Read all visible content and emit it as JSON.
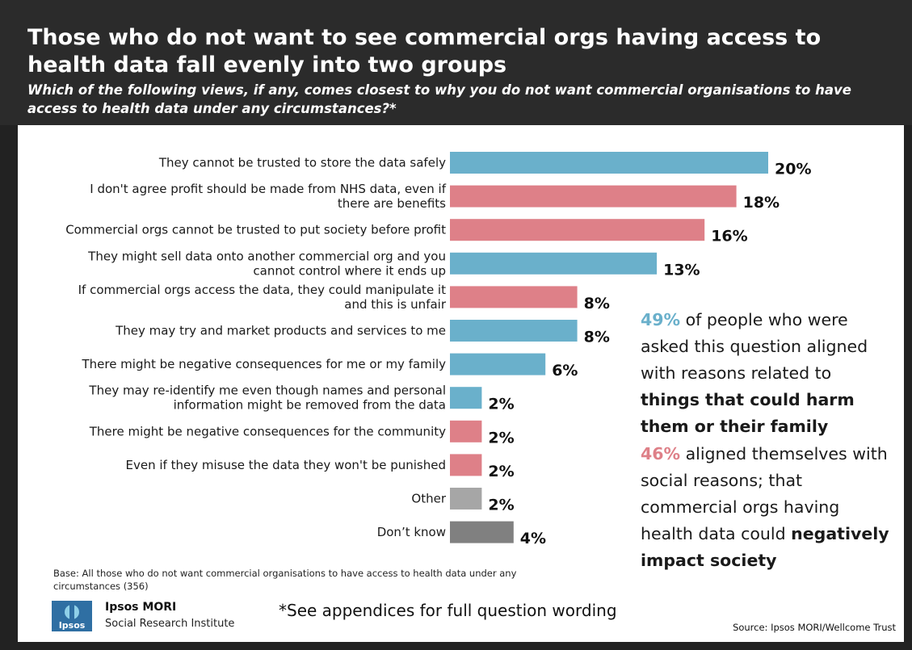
{
  "header": {
    "title": "Those who do not want to see commercial orgs having access to health data fall evenly into two groups",
    "subtitle": "Which of the following views, if any, comes closest to why you do not want commercial organisations to have access to health data under any circumstances?*"
  },
  "colors": {
    "blue": "#6ab0cb",
    "pink": "#de8088",
    "grey_light": "#a6a6a6",
    "grey_dark": "#808080",
    "header_bg": "#2b2b2b"
  },
  "chart_data": {
    "type": "bar",
    "orientation": "horizontal",
    "categories": [
      "They cannot be trusted to store the data safely",
      "I don't agree profit should be made from NHS data, even if there are benefits",
      "Commercial orgs cannot be trusted to put society before profit",
      "They might sell data onto another commercial org and you cannot control where it ends up",
      "If commercial orgs access the data, they could manipulate it and this is unfair",
      "They may try and market products and services to me",
      "There might be negative consequences for me or my family",
      "They may re-identify me even though names and personal information might be removed from the data",
      "There might be negative consequences for the community",
      "Even if they misuse the data they won't be punished",
      "Other",
      "Don’t know"
    ],
    "category_lines": [
      [
        "They cannot be trusted to store the data safely"
      ],
      [
        "I don't agree profit should be made from NHS data, even if",
        "there are benefits"
      ],
      [
        "Commercial orgs cannot be trusted to put society before profit"
      ],
      [
        "They might sell data onto another commercial org and you",
        "cannot control where it ends up"
      ],
      [
        "If commercial orgs access the data, they could manipulate it",
        "and this is unfair"
      ],
      [
        "They may try and market products and services to me"
      ],
      [
        "There might be negative consequences for me or my family"
      ],
      [
        "They may re-identify me even though names and personal",
        "information might be removed from the data"
      ],
      [
        "There might be negative consequences for the community"
      ],
      [
        "Even if they misuse the data they won't be punished"
      ],
      [
        "Other"
      ],
      [
        "Don’t know"
      ]
    ],
    "values": [
      20,
      18,
      16,
      13,
      8,
      8,
      6,
      2,
      2,
      2,
      2,
      4
    ],
    "labels": [
      "20%",
      "18%",
      "16%",
      "13%",
      "8%",
      "8%",
      "6%",
      "2%",
      "2%",
      "2%",
      "2%",
      "4%"
    ],
    "groups": [
      "harm",
      "society",
      "society",
      "harm",
      "society",
      "harm",
      "harm",
      "harm",
      "society",
      "society",
      "other",
      "dontknow"
    ],
    "xlim": [
      0,
      20
    ],
    "grid": false
  },
  "callouts": {
    "harm_pct": "49%",
    "harm_text": " of people who were asked this question aligned with reasons related to ",
    "harm_bold": "things that could harm them or their family",
    "society_pct": "46%",
    "society_text": " aligned themselves with social reasons; that commercial orgs having health data could ",
    "society_bold": "negatively impact society"
  },
  "footer": {
    "base": "Base: All those who do not want commercial organisations to have access to health data under any circumstances (356)",
    "brand_name": "Ipsos MORI",
    "brand_sub": "Social Research Institute",
    "logo_text": "Ipsos",
    "appendix": "*See appendices for full question wording",
    "source": "Source:  Ipsos MORI/Wellcome Trust"
  }
}
